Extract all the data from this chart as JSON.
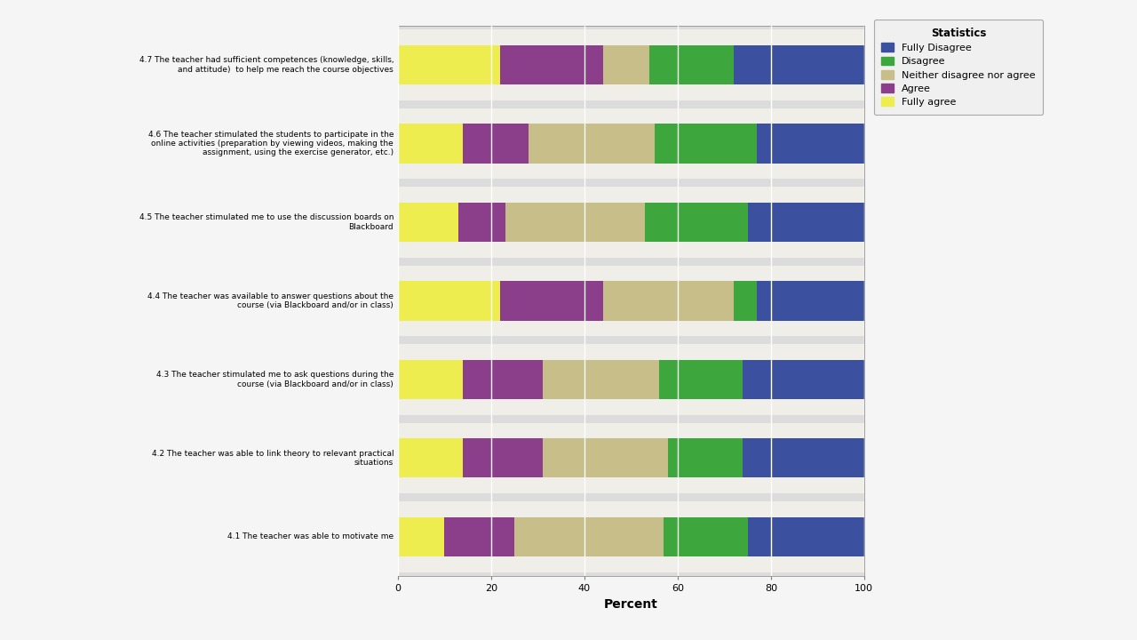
{
  "categories": [
    "4.7 The teacher had sufficient competences (knowledge, skills,\nand attitude)  to help me reach the course objectives",
    "4.6 The teacher stimulated the students to participate in the\nonline activities (preparation by viewing videos, making the\nassignment, using the exercise generator, etc.)",
    "4.5 The teacher stimulated me to use the discussion boards on\nBlackboard",
    "4.4 The teacher was available to answer questions about the\ncourse (via Blackboard and/or in class)",
    "4.3 The teacher stimulated me to ask questions during the\ncourse (via Blackboard and/or in class)",
    "4.2 The teacher was able to link theory to relevant practical\nsituations",
    "4.1 The teacher was able to motivate me"
  ],
  "fully_agree": [
    22,
    14,
    13,
    22,
    14,
    14,
    10
  ],
  "agree": [
    22,
    14,
    10,
    22,
    17,
    17,
    15
  ],
  "neither": [
    10,
    27,
    30,
    28,
    25,
    27,
    32
  ],
  "disagree": [
    18,
    22,
    22,
    5,
    18,
    16,
    18
  ],
  "fully_disagree": [
    28,
    23,
    25,
    23,
    26,
    26,
    25
  ],
  "colors": {
    "fully_disagree": "#3C50A0",
    "disagree": "#3DA63D",
    "neither": "#C8BE8A",
    "agree": "#8B3F8B",
    "fully_agree": "#EDED50"
  },
  "legend_labels": [
    "Fully Disagree",
    "Disagree",
    "Neither disagree nor agree",
    "Agree",
    "Fully agree"
  ],
  "legend_title": "Statistics",
  "xlabel": "Percent",
  "xlim": [
    0,
    100
  ],
  "xticks": [
    0,
    20,
    40,
    60,
    80,
    100
  ],
  "chart_bg": "#DCDCDC",
  "bar_bg": "#F0EEE8",
  "outer_bg": "#F5F5F5",
  "bar_height": 0.5,
  "figsize": [
    12.8,
    7.2
  ],
  "dpi": 100
}
